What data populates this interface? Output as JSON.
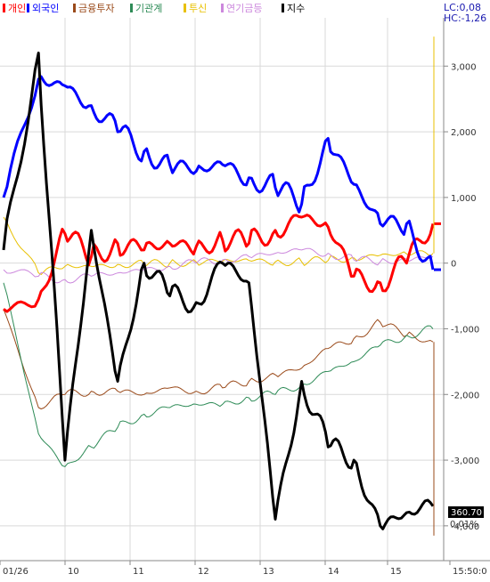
{
  "chart_data": {
    "type": "line",
    "title": "",
    "legend": [
      {
        "name": "개인",
        "color": "#ff0000"
      },
      {
        "name": "외국인",
        "color": "#0000ff"
      },
      {
        "name": "금융투자",
        "color": "#9a4a1a"
      },
      {
        "name": "기관계",
        "color": "#2e8b57"
      },
      {
        "name": "투신",
        "color": "#e8c000"
      },
      {
        "name": "연기금등",
        "color": "#cc88dd"
      },
      {
        "name": "지수",
        "color": "#000000"
      }
    ],
    "legend_placement": "top-left",
    "header_lc": "LC:0,08",
    "header_hc": "HC:-1,26",
    "x_ticks": [
      "01/26",
      "10",
      "11",
      "12",
      "13",
      "14",
      "15",
      "15:50:0"
    ],
    "y_ticks": [
      "3,000",
      "2,000",
      "1,000",
      "0",
      "-1,000",
      "-2,000",
      "-3,000",
      "-4,000"
    ],
    "ylim": [
      -4300,
      3600
    ],
    "grid": true,
    "index_badge": "360.70",
    "index_change": "0,01%",
    "x_hours": [
      0,
      0.57,
      1.0,
      1.43,
      1.86,
      2.29,
      2.71,
      3.14,
      3.57,
      4.0,
      4.43,
      4.86,
      5.29,
      5.71,
      6.14,
      6.57,
      7.0
    ],
    "series": [
      {
        "name": "개인",
        "color": "#ff0000",
        "width": 3,
        "values": [
          -700,
          -550,
          450,
          100,
          300,
          200,
          300,
          250,
          350,
          300,
          500,
          700,
          550,
          -200,
          -300,
          0,
          600
        ]
      },
      {
        "name": "외국인",
        "color": "#0000ff",
        "width": 3,
        "values": [
          1000,
          2800,
          2700,
          2400,
          2000,
          1700,
          1500,
          1400,
          1500,
          1300,
          1150,
          900,
          1900,
          1200,
          600,
          600,
          -100
        ]
      },
      {
        "name": "금융투자",
        "color": "#9a4a1a",
        "width": 1,
        "values": [
          -700,
          -2200,
          -2000,
          -1950,
          -1950,
          -2000,
          -1900,
          -1950,
          -1900,
          -1800,
          -1700,
          -1600,
          -1300,
          -1150,
          -900,
          -1100,
          -1200
        ]
      },
      {
        "name": "기관계",
        "color": "#2e8b57",
        "width": 1,
        "values": [
          -300,
          -2600,
          -3100,
          -2800,
          -2500,
          -2300,
          -2200,
          -2150,
          -2150,
          -2050,
          -2000,
          -1850,
          -1650,
          -1500,
          -1250,
          -1100,
          -1000
        ]
      },
      {
        "name": "투신",
        "color": "#e8c000",
        "width": 1,
        "values": [
          700,
          -150,
          -50,
          -50,
          -20,
          -20,
          0,
          20,
          30,
          40,
          20,
          20,
          40,
          80,
          120,
          140,
          150
        ]
      },
      {
        "name": "연기금등",
        "color": "#cc88dd",
        "width": 1,
        "values": [
          -100,
          -200,
          -250,
          -200,
          -150,
          -100,
          -50,
          0,
          50,
          100,
          150,
          200,
          150,
          50,
          20,
          60,
          100
        ]
      },
      {
        "name": "지수",
        "color": "#000000",
        "width": 3,
        "values": [
          200,
          3200,
          -3000,
          500,
          -1800,
          0,
          -500,
          -600,
          0,
          -300,
          -3900,
          -1800,
          -2800,
          -3000,
          -4000,
          -3800,
          -3700
        ]
      }
    ]
  }
}
